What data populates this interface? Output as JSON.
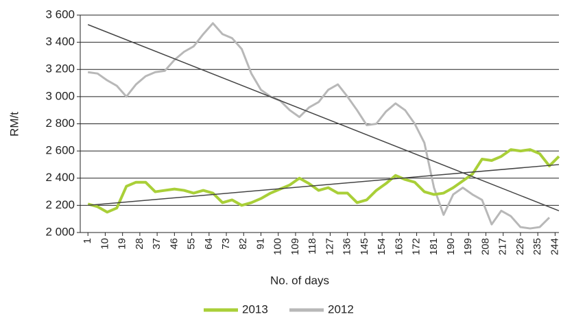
{
  "chart_data": {
    "type": "line",
    "xlabel": "No. of days",
    "ylabel": "RM/t",
    "x": [
      1,
      6,
      11,
      16,
      21,
      26,
      31,
      36,
      41,
      46,
      51,
      56,
      61,
      66,
      71,
      76,
      81,
      86,
      91,
      96,
      101,
      106,
      111,
      116,
      121,
      126,
      131,
      136,
      141,
      146,
      151,
      156,
      161,
      166,
      171,
      176,
      181,
      186,
      191,
      196,
      201,
      206,
      211,
      216,
      221,
      226,
      231,
      236,
      241,
      246
    ],
    "series": [
      {
        "name": "2013",
        "color": "#a9cf38",
        "width": 4,
        "values": [
          2210,
          2190,
          2150,
          2180,
          2340,
          2370,
          2370,
          2300,
          2310,
          2320,
          2310,
          2290,
          2310,
          2290,
          2220,
          2240,
          2200,
          2220,
          2250,
          2290,
          2320,
          2350,
          2400,
          2360,
          2310,
          2330,
          2290,
          2290,
          2220,
          2240,
          2310,
          2360,
          2420,
          2390,
          2370,
          2300,
          2280,
          2290,
          2330,
          2380,
          2430,
          2540,
          2530,
          2560,
          2610,
          2600,
          2610,
          2580,
          2490,
          2560
        ]
      },
      {
        "name": "2012",
        "color": "#b8b8b8",
        "width": 3,
        "values": [
          3180,
          3170,
          3120,
          3080,
          3000,
          3090,
          3150,
          3180,
          3190,
          3270,
          3330,
          3370,
          3460,
          3540,
          3460,
          3430,
          3350,
          3170,
          3050,
          3000,
          2970,
          2900,
          2850,
          2920,
          2960,
          3050,
          3090,
          3000,
          2900,
          2790,
          2800,
          2890,
          2950,
          2900,
          2800,
          2660,
          2330,
          2130,
          2280,
          2330,
          2280,
          2240,
          2060,
          2160,
          2120,
          2040,
          2030,
          2040,
          2110,
          null
        ]
      }
    ],
    "trendlines": [
      {
        "x": [
          1,
          246
        ],
        "values": [
          3530,
          2160
        ],
        "color": "#444444"
      },
      {
        "x": [
          1,
          246
        ],
        "values": [
          2200,
          2500
        ],
        "color": "#444444"
      }
    ],
    "xlim": [
      -3,
      246
    ],
    "xticks": [
      1,
      10,
      19,
      28,
      37,
      46,
      55,
      64,
      73,
      82,
      91,
      100,
      109,
      118,
      127,
      136,
      145,
      154,
      163,
      172,
      181,
      190,
      199,
      208,
      217,
      226,
      235,
      244
    ],
    "ylim": [
      2000,
      3600
    ],
    "yticks": [
      {
        "value": 2000,
        "label": "2 000"
      },
      {
        "value": 2200,
        "label": "2 200"
      },
      {
        "value": 2400,
        "label": "2 400"
      },
      {
        "value": 2600,
        "label": "2 600"
      },
      {
        "value": 2800,
        "label": "2 800"
      },
      {
        "value": 3000,
        "label": "3 000"
      },
      {
        "value": 3200,
        "label": "3 200"
      },
      {
        "value": 3400,
        "label": "3 400"
      },
      {
        "value": 3600,
        "label": "3 600"
      }
    ],
    "grid": true,
    "legend": "bottom"
  }
}
